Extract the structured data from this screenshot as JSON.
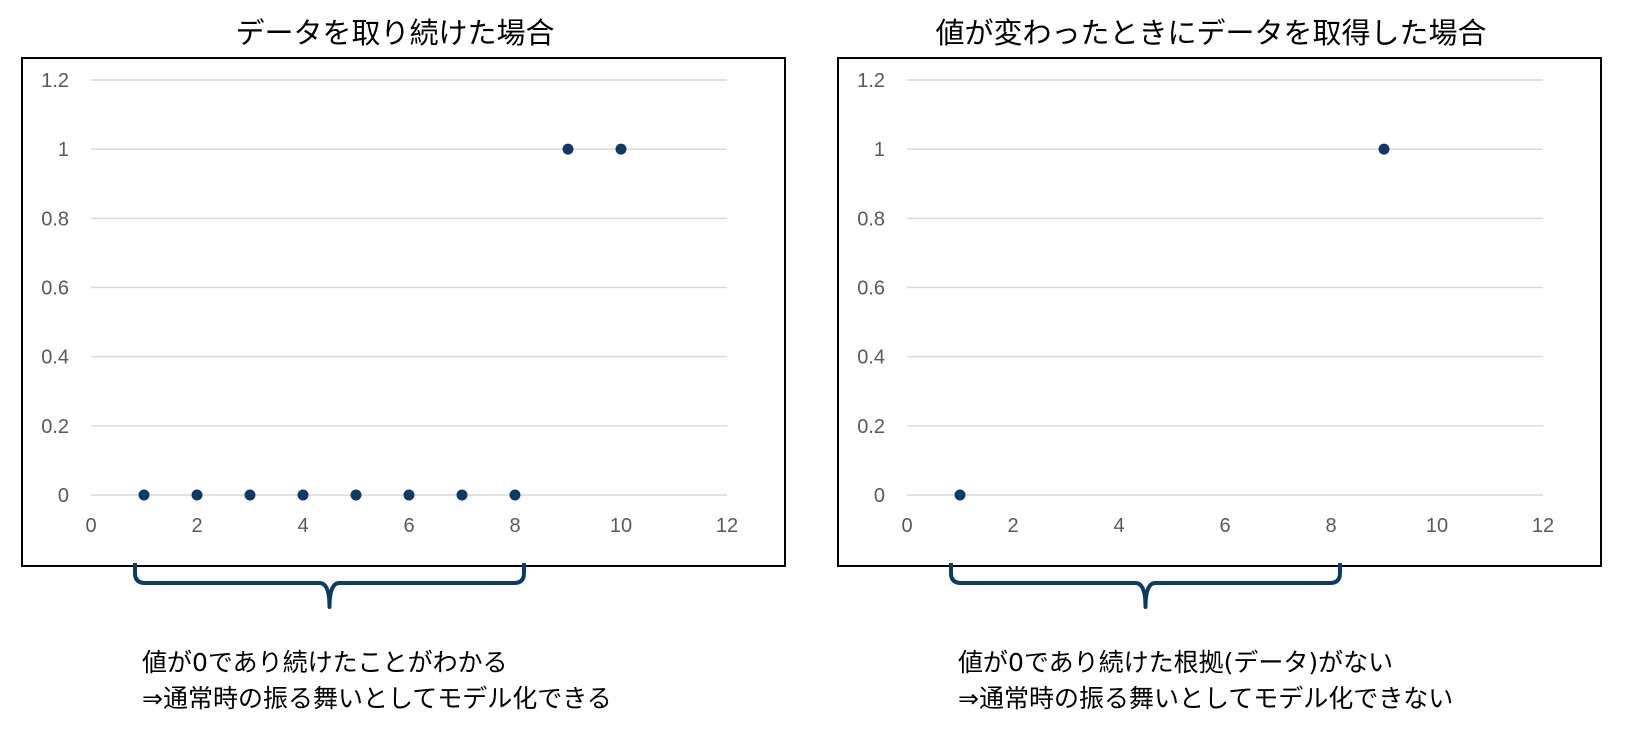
{
  "chart_data": [
    {
      "type": "scatter",
      "title": "データを取り続けた場合",
      "x": [
        1,
        2,
        3,
        4,
        5,
        6,
        7,
        8,
        9,
        10
      ],
      "y": [
        0,
        0,
        0,
        0,
        0,
        0,
        0,
        0,
        1,
        1
      ],
      "xlim": [
        0,
        12
      ],
      "ylim": [
        0,
        1.2
      ],
      "xticks": [
        "0",
        "2",
        "4",
        "6",
        "8",
        "10",
        "12"
      ],
      "yticks": [
        "0",
        "0.2",
        "0.4",
        "0.6",
        "0.8",
        "1",
        "1.2"
      ],
      "grid": "horizontal",
      "marker_color": "#0d3a66",
      "annotation": {
        "brace_range": [
          1,
          8
        ],
        "line1": "値が0であり続けたことがわかる",
        "line2": "⇒通常時の振る舞いとしてモデル化できる"
      }
    },
    {
      "type": "scatter",
      "title": "値が変わったときにデータを取得した場合",
      "x": [
        1,
        9
      ],
      "y": [
        0,
        1
      ],
      "xlim": [
        0,
        12
      ],
      "ylim": [
        0,
        1.2
      ],
      "xticks": [
        "0",
        "2",
        "4",
        "6",
        "8",
        "10",
        "12"
      ],
      "yticks": [
        "0",
        "0.2",
        "0.4",
        "0.6",
        "0.8",
        "1",
        "1.2"
      ],
      "grid": "horizontal",
      "marker_color": "#0d3a66",
      "annotation": {
        "brace_range": [
          1,
          8
        ],
        "line1": "値が0であり続けた根拠(データ)がない",
        "line2": "⇒通常時の振る舞いとしてモデル化できない"
      }
    }
  ],
  "colors": {
    "brace": "#0d3a66",
    "gridline": "#d9d9d9",
    "tick_text": "#595959"
  }
}
